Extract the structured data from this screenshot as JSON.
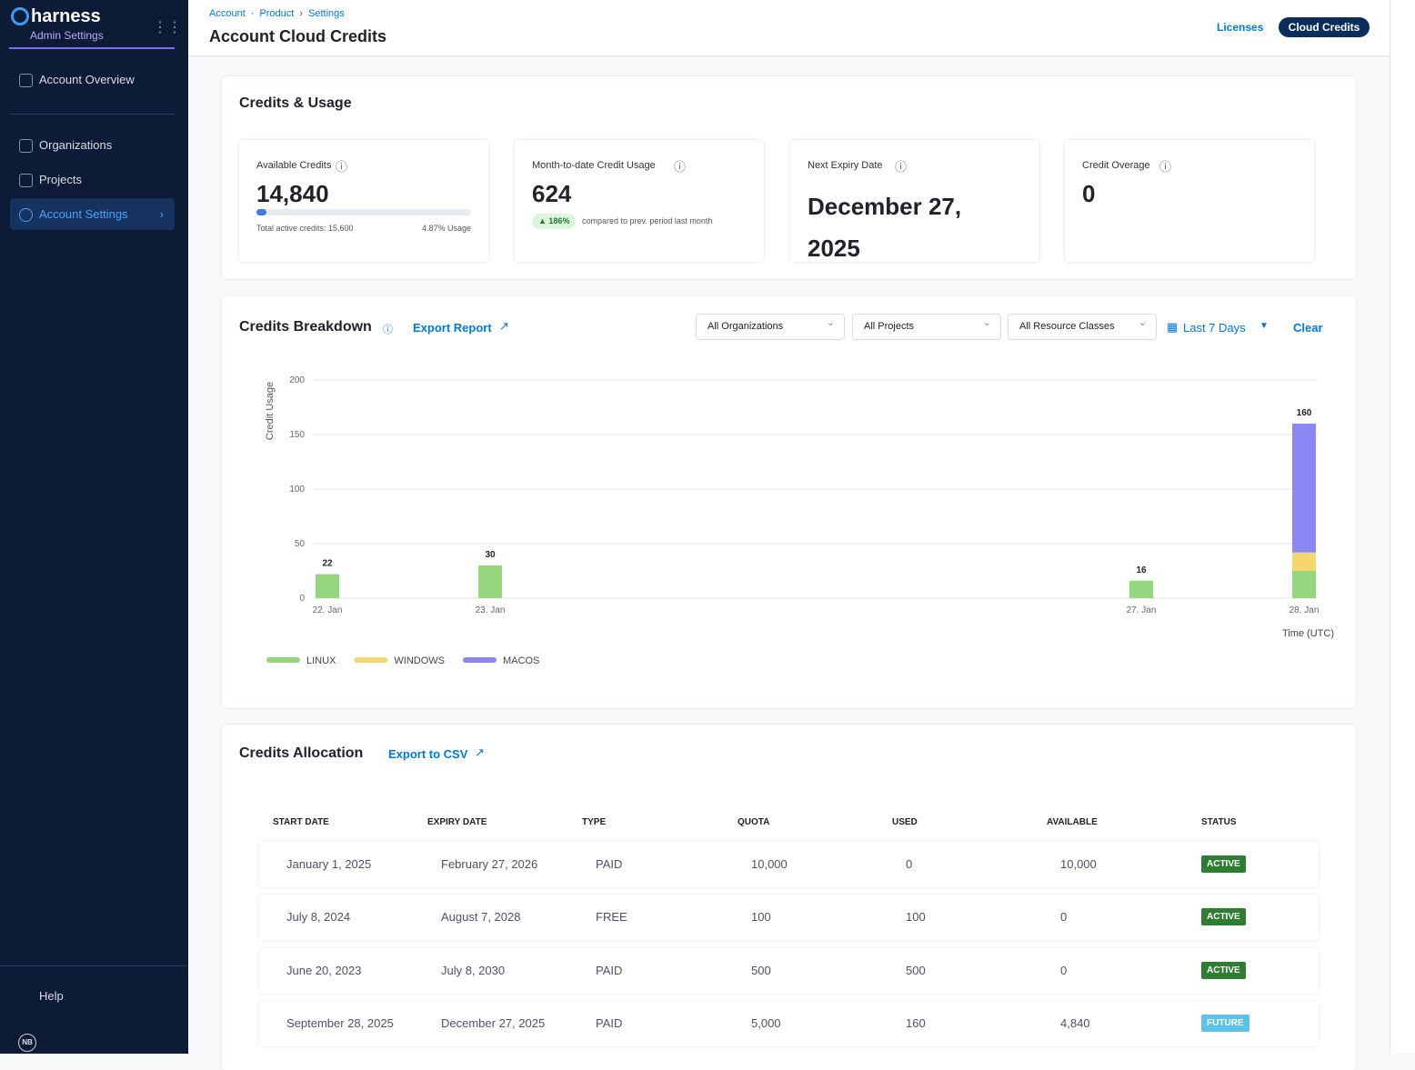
{
  "sidebar": {
    "brand": "harness",
    "subtitle": "Admin Settings",
    "nav": [
      "Account Overview",
      "Organizations",
      "Projects",
      "Account Settings"
    ],
    "help": "Help",
    "avatar": "NB"
  },
  "header": {
    "breadcrumbs": [
      "Account",
      "Product",
      "Settings"
    ],
    "title": "Account Cloud Credits",
    "tabs": [
      "Licenses",
      "Cloud Credits"
    ]
  },
  "usage": {
    "title": "Credits & Usage",
    "cards": [
      {
        "label": "Available Credits",
        "value": "14,840",
        "usage": {
          "value": 4.87,
          "label": "4.87% Usage"
        },
        "note": "Total active credits: 15,600"
      },
      {
        "label": "Month-to-date Credit Usage",
        "value": "624",
        "badge": "186%",
        "note": "compared to prev. period last month"
      },
      {
        "label": "Next Expiry Date",
        "value": "December 27, 2025"
      },
      {
        "label": "Credit Overage",
        "value": "0"
      }
    ]
  },
  "breakdown": {
    "title": "Credits Breakdown",
    "link": "Export Report",
    "filters": [
      "All Organizations",
      "All Projects",
      "All Resource Classes"
    ],
    "range": "Last 7 Days",
    "clear": "Clear"
  },
  "chart_data": {
    "type": "bar",
    "stacked": true,
    "categories": [
      "22. Jan",
      "23. Jan",
      null,
      null,
      null,
      "27. Jan",
      "28. Jan"
    ],
    "series": [
      {
        "name": "LINUX",
        "color": "#95d67f",
        "values": [
          22,
          30,
          null,
          null,
          null,
          16,
          25
        ]
      },
      {
        "name": "WINDOWS",
        "color": "#f5d76e",
        "values": [
          null,
          null,
          null,
          null,
          null,
          null,
          17
        ]
      },
      {
        "name": "MACOS",
        "color": "#8b87f4",
        "values": [
          null,
          null,
          null,
          null,
          null,
          null,
          118
        ]
      }
    ],
    "totals": [
      22,
      30,
      null,
      null,
      null,
      16,
      160
    ],
    "ylim": [
      0,
      200
    ],
    "yticks": [
      0,
      50,
      100,
      150,
      200
    ],
    "ylabel": "Credit Usage",
    "xlabel": "Time (UTC)",
    "grid": true
  },
  "allocation": {
    "title": "Credits Allocation",
    "link": "Export to CSV",
    "columns": [
      "START DATE",
      "EXPIRY DATE",
      "TYPE",
      "QUOTA",
      "USED",
      "AVAILABLE",
      "STATUS"
    ],
    "rows": [
      [
        "January 1, 2025",
        "February 27, 2026",
        "PAID",
        "10,000",
        "0",
        "10,000",
        "ACTIVE"
      ],
      [
        "July 8, 2024",
        "August 7, 2028",
        "FREE",
        "100",
        "100",
        "0",
        "ACTIVE"
      ],
      [
        "June 20, 2023",
        "July 8, 2030",
        "PAID",
        "500",
        "500",
        "0",
        "ACTIVE"
      ],
      [
        "September 28, 2025",
        "December 27, 2025",
        "PAID",
        "5,000",
        "160",
        "4,840",
        "FUTURE"
      ]
    ],
    "status_colors": [
      "#2e7d32",
      "#2e7d32",
      "#2e7d32",
      "#5cc2ea"
    ]
  }
}
